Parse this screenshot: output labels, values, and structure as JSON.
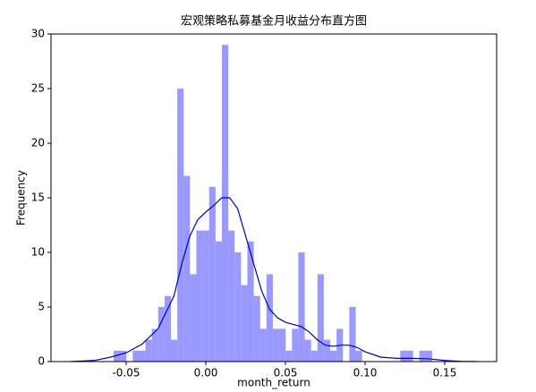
{
  "chart_data": {
    "type": "histogram",
    "title": "宏观策略私募基金月收益分布直方图",
    "xlabel": "month_return",
    "ylabel": "Frequency",
    "bins": [
      -0.0579,
      -0.0539,
      -0.0499,
      -0.0459,
      -0.0419,
      -0.0379,
      -0.0339,
      -0.0299,
      -0.0259,
      -0.0219,
      -0.0179,
      -0.0139,
      -0.0099,
      -0.0059,
      -0.0019,
      0.0021,
      0.0061,
      0.0101,
      0.0141,
      0.0181,
      0.0221,
      0.0261,
      0.0301,
      0.0341,
      0.0381,
      0.0421,
      0.0461,
      0.0501,
      0.0541,
      0.0581,
      0.0621,
      0.0661,
      0.0701,
      0.0741,
      0.0781,
      0.0821,
      0.0861,
      0.0901,
      0.0941,
      0.0981,
      0.1021,
      0.1061,
      0.1101,
      0.1141,
      0.1181,
      0.1221,
      0.1261,
      0.1301,
      0.1341,
      0.1381,
      0.1421
    ],
    "counts": [
      1,
      1,
      0,
      1,
      1,
      2,
      3,
      5,
      6,
      2,
      25,
      17,
      8,
      12,
      12,
      16,
      11,
      29,
      12,
      10,
      7,
      11,
      6,
      3,
      8,
      3,
      3,
      1,
      3,
      10,
      2,
      1,
      8,
      2,
      1,
      3,
      0,
      5,
      1,
      0,
      0,
      0,
      0,
      0,
      0,
      1,
      1,
      0,
      1,
      1
    ],
    "color": "#9999ff",
    "kde": {
      "color": "#0000cc",
      "x": [
        -0.085,
        -0.07,
        -0.06,
        -0.05,
        -0.04,
        -0.03,
        -0.02,
        -0.015,
        -0.01,
        -0.005,
        0.0,
        0.005,
        0.01,
        0.015,
        0.02,
        0.025,
        0.03,
        0.035,
        0.04,
        0.045,
        0.05,
        0.055,
        0.06,
        0.065,
        0.07,
        0.075,
        0.08,
        0.085,
        0.09,
        0.095,
        0.1,
        0.11,
        0.12,
        0.13,
        0.14,
        0.15,
        0.16,
        0.17
      ],
      "values": [
        0,
        0.1,
        0.4,
        0.8,
        1.6,
        3,
        6,
        9,
        11.5,
        13,
        13.7,
        14.3,
        15,
        15,
        14,
        11.5,
        9,
        6.5,
        4.8,
        4,
        3.6,
        3.4,
        3.2,
        2.7,
        2,
        1.5,
        1.4,
        1.5,
        1.5,
        1.3,
        0.9,
        0.4,
        0.3,
        0.3,
        0.25,
        0.1,
        0.02,
        0
      ]
    },
    "xlim": [
      -0.0972,
      0.1826
    ],
    "ylim": [
      0,
      30
    ],
    "xticks": [
      -0.05,
      {
        "value": 0,
        "label": "0.00"
      },
      0.05,
      {
        "value": 0.1,
        "label": "0.10"
      },
      0.15
    ],
    "yticks": [
      0,
      5,
      10,
      15,
      20,
      25,
      30
    ]
  }
}
